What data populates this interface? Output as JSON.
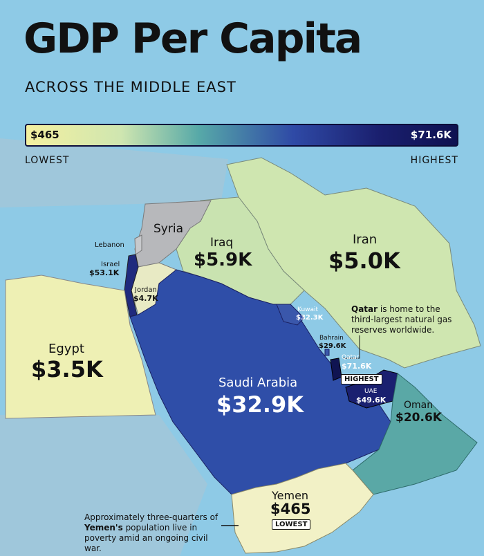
{
  "header": {
    "title": "GDP Per Capita",
    "subtitle": "ACROSS THE MIDDLE EAST"
  },
  "legend": {
    "min_value": "$465",
    "max_value": "$71.6K",
    "min_label": "LOWEST",
    "max_label": "HIGHEST",
    "gradient_colors": [
      "#f4f0a0",
      "#cfe6b0",
      "#57a9a8",
      "#2f4aa6",
      "#1a1f6e",
      "#0e1150"
    ]
  },
  "colors": {
    "water": "#8ecae6",
    "other_land": "#bfc3c7",
    "egypt": "#eef0b4",
    "yemen": "#f2f1c6",
    "jordan": "#e8eac4",
    "iran": "#cfe6b0",
    "iraq": "#c9e3b0",
    "syria": "#b7b8bb",
    "saudi": "#2f4ea8",
    "oman": "#5aa8a6",
    "kuwait": "#3a57ab",
    "qatar": "#101452",
    "uae": "#1a2070",
    "bahrain": "#3b59ab",
    "israel": "#1f2a7e",
    "lebanon": "#c7c9cc"
  },
  "countries": {
    "iran": {
      "name": "Iran",
      "value": "$5.0K"
    },
    "iraq": {
      "name": "Iraq",
      "value": "$5.9K"
    },
    "syria": {
      "name": "Syria"
    },
    "lebanon": {
      "name": "Lebanon"
    },
    "israel": {
      "name": "Israel",
      "value": "$53.1K"
    },
    "jordan": {
      "name": "Jordan",
      "value": "$4.7K"
    },
    "egypt": {
      "name": "Egypt",
      "value": "$3.5K"
    },
    "saudi": {
      "name": "Saudi Arabia",
      "value": "$32.9K"
    },
    "kuwait": {
      "name": "Kuwait",
      "value": "$32.3K"
    },
    "bahrain": {
      "name": "Bahrain",
      "value": "$29.6K"
    },
    "qatar": {
      "name": "Qatar",
      "value": "$71.6K",
      "tag": "HIGHEST"
    },
    "uae": {
      "name": "UAE",
      "value": "$49.6K"
    },
    "oman": {
      "name": "Oman",
      "value": "$20.6K"
    },
    "yemen": {
      "name": "Yemen",
      "value": "$465",
      "tag": "LOWEST"
    }
  },
  "notes": {
    "qatar_bold": "Qatar",
    "qatar_rest": "is home to the third-largest natural gas reserves worldwide.",
    "yemen_pre": "Approximately three-quarters of",
    "yemen_bold": "Yemen's",
    "yemen_rest": "population live in poverty amid an ongoing civil war."
  }
}
